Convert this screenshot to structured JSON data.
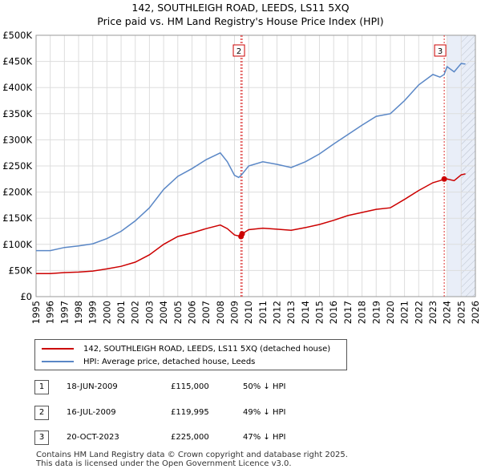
{
  "title_line1": "142, SOUTHLEIGH ROAD, LEEDS, LS11 5XQ",
  "title_line2": "Price paid vs. HM Land Registry's House Price Index (HPI)",
  "chart_data": {
    "type": "line",
    "title": "Price paid vs. HM Land Registry's House Price Index (HPI)",
    "xlabel": "",
    "ylabel": "",
    "xlim": [
      1995,
      2026
    ],
    "ylim": [
      0,
      500000
    ],
    "y_ticks": [
      0,
      50000,
      100000,
      150000,
      200000,
      250000,
      300000,
      350000,
      400000,
      450000,
      500000
    ],
    "y_tick_labels": [
      "£0",
      "£50K",
      "£100K",
      "£150K",
      "£200K",
      "£250K",
      "£300K",
      "£350K",
      "£400K",
      "£450K",
      "£500K"
    ],
    "x_ticks": [
      1995,
      1996,
      1997,
      1998,
      1999,
      2000,
      2001,
      2002,
      2003,
      2004,
      2005,
      2006,
      2007,
      2008,
      2009,
      2010,
      2011,
      2012,
      2013,
      2014,
      2015,
      2016,
      2017,
      2018,
      2019,
      2020,
      2021,
      2022,
      2023,
      2024,
      2025,
      2026
    ],
    "grid": true,
    "series": [
      {
        "name": "142, SOUTHLEIGH ROAD, LEEDS, LS11 5XQ (detached house)",
        "color": "#cc0000",
        "x": [
          1995,
          1996,
          1997,
          1998,
          1999,
          2000,
          2001,
          2002,
          2003,
          2004,
          2005,
          2006,
          2007,
          2008,
          2008.5,
          2009.0,
          2009.46,
          2009.54,
          2010,
          2011,
          2012,
          2013,
          2014,
          2015,
          2016,
          2017,
          2018,
          2019,
          2020,
          2021,
          2022,
          2023,
          2023.5,
          2023.8,
          2024,
          2024.5,
          2025,
          2025.3
        ],
        "y": [
          44000,
          44000,
          46000,
          47000,
          49000,
          53000,
          58000,
          66000,
          80000,
          100000,
          115000,
          122000,
          130000,
          137000,
          130000,
          118000,
          115000,
          119995,
          128000,
          131000,
          129000,
          127000,
          132000,
          138000,
          146000,
          155000,
          161000,
          167000,
          170000,
          186000,
          203000,
          218000,
          222000,
          225000,
          225000,
          222000,
          233000,
          235000
        ]
      },
      {
        "name": "HPI: Average price, detached house, Leeds",
        "color": "#5a87c6",
        "x": [
          1995,
          1996,
          1997,
          1998,
          1999,
          2000,
          2001,
          2002,
          2003,
          2004,
          2005,
          2006,
          2007,
          2008,
          2008.5,
          2009,
          2009.3,
          2009.5,
          2010,
          2011,
          2012,
          2013,
          2014,
          2015,
          2016,
          2017,
          2018,
          2019,
          2020,
          2021,
          2022,
          2023,
          2023.5,
          2023.8,
          2024,
          2024.5,
          2025,
          2025.3
        ],
        "y": [
          88000,
          88000,
          94000,
          97000,
          101000,
          111000,
          125000,
          145000,
          170000,
          205000,
          230000,
          245000,
          262000,
          275000,
          258000,
          232000,
          228000,
          233000,
          250000,
          258000,
          253000,
          247000,
          258000,
          273000,
          292000,
          310000,
          328000,
          345000,
          350000,
          375000,
          405000,
          425000,
          420000,
          425000,
          440000,
          430000,
          446000,
          445000
        ]
      }
    ],
    "markers": [
      {
        "label": "1",
        "date": 2009.46,
        "price": 115000
      },
      {
        "label": "2",
        "date": 2009.54,
        "price": 119995
      },
      {
        "label": "3",
        "date": 2023.8,
        "price": 225000
      }
    ],
    "shaded_future_start": 2024.0,
    "hatched_from": 2025.0
  },
  "legend": {
    "property": "142, SOUTHLEIGH ROAD, LEEDS, LS11 5XQ (detached house)",
    "hpi": "HPI: Average price, detached house, Leeds",
    "property_color": "#cc0000",
    "hpi_color": "#5a87c6"
  },
  "transactions": [
    {
      "num": "1",
      "date": "18-JUN-2009",
      "price": "£115,000",
      "hpi": "50% ↓ HPI"
    },
    {
      "num": "2",
      "date": "16-JUL-2009",
      "price": "£119,995",
      "hpi": "49% ↓ HPI"
    },
    {
      "num": "3",
      "date": "20-OCT-2023",
      "price": "£225,000",
      "hpi": "47% ↓ HPI"
    }
  ],
  "footer_line1": "Contains HM Land Registry data © Crown copyright and database right 2025.",
  "footer_line2": "This data is licensed under the Open Government Licence v3.0."
}
